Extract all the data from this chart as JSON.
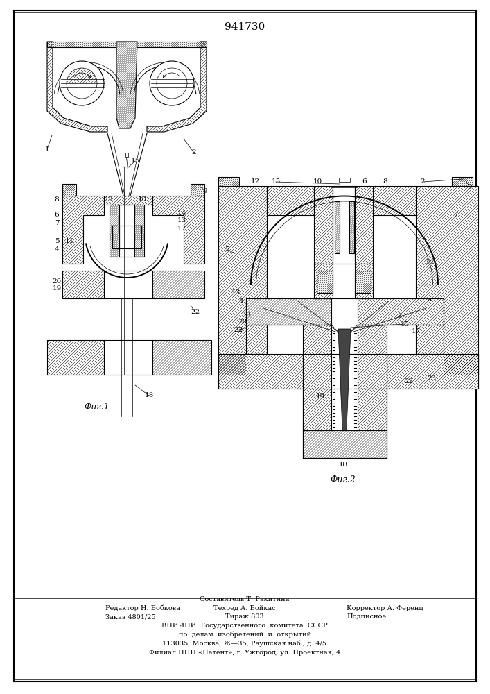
{
  "patent_number": "941730",
  "background_color": "#ffffff",
  "line_color": "#000000",
  "fig1_caption": "Фиг.1",
  "fig2_caption": "Фиг.2",
  "footer_line1_left": "Редактор Н. Бобкова",
  "footer_line1_center": "Техред А. Бойкас",
  "footer_line1_right": "Корректор А. Ференц",
  "footer_line2_left": "Заказ 4801/25",
  "footer_line2_center": "Тираж 803",
  "footer_line2_right": "Подписное",
  "footer_line0": "Составитель Т. Ракитина",
  "footer_org1": "ВНИИПИ  Государственного  комитета  СССР",
  "footer_org2": "по  делам  изобретений  и  открытий",
  "footer_org3": "113035, Москва, Ж—35, Раушская наб., д. 4/5",
  "footer_org4": "Филиал ППП «Патент», г. Ужгород, ул. Проектная, 4",
  "fig_width": 7.07,
  "fig_height": 10.0,
  "dpi": 100
}
